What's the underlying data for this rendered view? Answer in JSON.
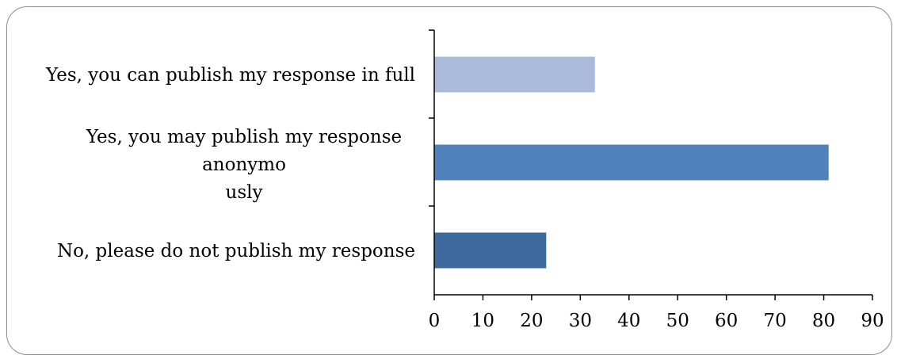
{
  "chart_data": {
    "type": "bar",
    "orientation": "horizontal",
    "categories": [
      [
        "Yes, you can publish my response in full"
      ],
      [
        "Yes, you may publish my response",
        "anonymo",
        "usly"
      ],
      [
        "No, please do not publish my response"
      ]
    ],
    "values": [
      33,
      81,
      23
    ],
    "colors": [
      "#a9bbd8",
      "#4f81bd",
      "#3e6a9e"
    ],
    "xlim": [
      0,
      90
    ],
    "xticks": [
      "0",
      "10",
      "20",
      "30",
      "40",
      "50",
      "60",
      "70",
      "80",
      "90"
    ],
    "title": "",
    "xlabel": "",
    "ylabel": "",
    "grid": false,
    "legend": false
  }
}
